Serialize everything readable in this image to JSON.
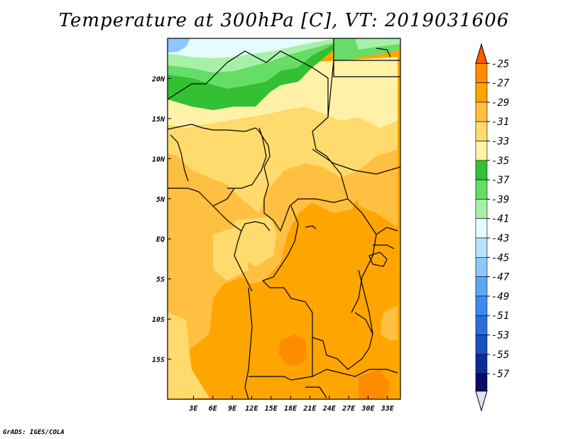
{
  "title": "Temperature at 300hPa [C], VT: 2019031606",
  "footer": "GrADS: IGES/COLA",
  "map": {
    "lon_range": [
      -1,
      35
    ],
    "lat_range": [
      -20,
      25
    ],
    "lon_ticks": [
      "3E",
      "6E",
      "9E",
      "12E",
      "15E",
      "18E",
      "21E",
      "24E",
      "27E",
      "30E",
      "33E"
    ],
    "lat_ticks": [
      "20N",
      "15N",
      "10N",
      "5N",
      "EQ",
      "5S",
      "10S",
      "15S"
    ]
  },
  "colorbar": {
    "labels": [
      "-25",
      "-27",
      "-29",
      "-31",
      "-33",
      "-35",
      "-37",
      "-39",
      "-41",
      "-43",
      "-45",
      "-47",
      "-49",
      "-51",
      "-53",
      "-55",
      "-57"
    ],
    "colors": [
      "#ff5a00",
      "#ff8c00",
      "#ffa500",
      "#ffbf40",
      "#ffda6c",
      "#fff2a8",
      "#33c033",
      "#66dd66",
      "#a8f0a8",
      "#e4fcfc",
      "#b6e2ff",
      "#8cc8ff",
      "#5aa8f5",
      "#3c8cf0",
      "#2a6edc",
      "#1a50c0",
      "#0c2c96",
      "#080c6a"
    ],
    "arrow_low_color": "#e0e0f5"
  }
}
